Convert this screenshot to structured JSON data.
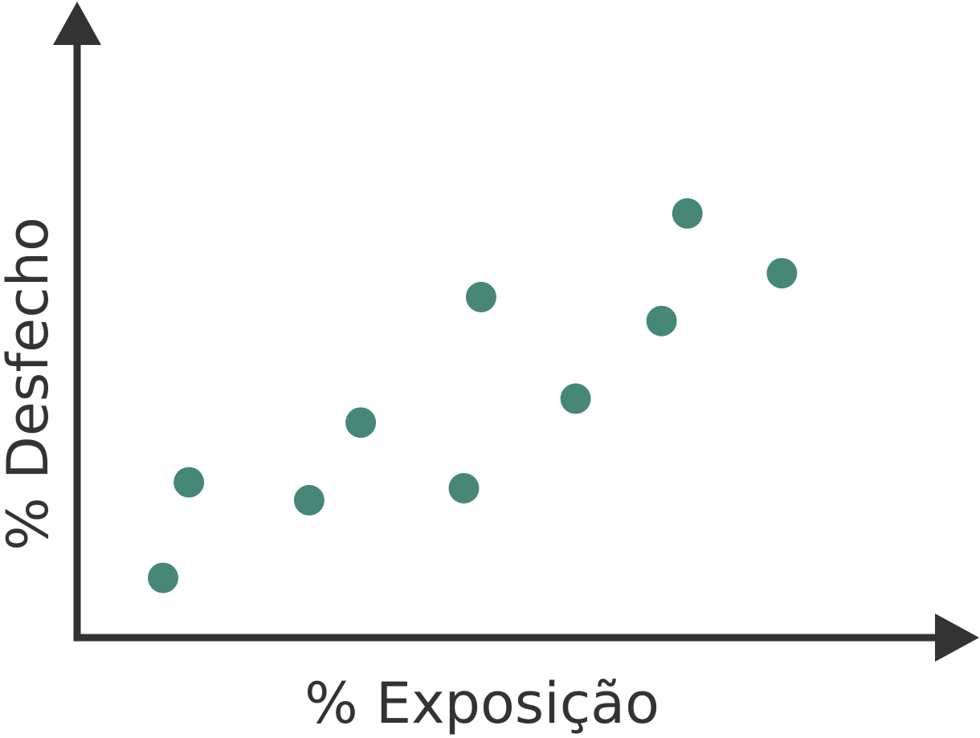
{
  "chart_data": {
    "type": "scatter",
    "title": "",
    "xlabel": "% Exposição",
    "ylabel": "% Desfecho",
    "xlim": [
      0,
      100
    ],
    "ylim": [
      0,
      100
    ],
    "grid": false,
    "ticks": false,
    "point_color": "#468778",
    "axis_color": "#333333",
    "series": [
      {
        "points": [
          {
            "x": 10,
            "y": 10
          },
          {
            "x": 13,
            "y": 26
          },
          {
            "x": 27,
            "y": 23
          },
          {
            "x": 33,
            "y": 36
          },
          {
            "x": 45,
            "y": 25
          },
          {
            "x": 47,
            "y": 57
          },
          {
            "x": 58,
            "y": 40
          },
          {
            "x": 68,
            "y": 53
          },
          {
            "x": 71,
            "y": 71
          },
          {
            "x": 82,
            "y": 61
          }
        ]
      }
    ]
  }
}
